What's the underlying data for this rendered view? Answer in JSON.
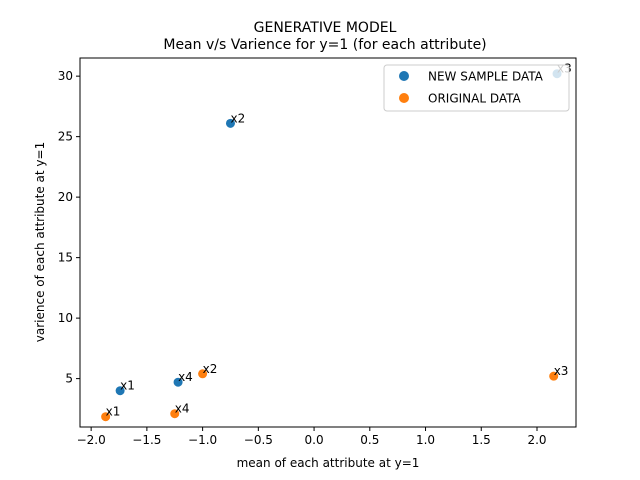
{
  "chart_data": {
    "type": "scatter",
    "title": "GENERATIVE MODEL",
    "subtitle": "Mean v/s Varience for y=1 (for each attribute)",
    "xlabel": "mean of each attribute at y=1",
    "ylabel": "varience of each attribute at y=1",
    "xlim": [
      -2.1,
      2.35
    ],
    "ylim": [
      1.0,
      31.5
    ],
    "xticks": [
      -2.0,
      -1.5,
      -1.0,
      -0.5,
      0.0,
      0.5,
      1.0,
      1.5,
      2.0
    ],
    "xtick_labels": [
      "−2.0",
      "−1.5",
      "−1.0",
      "−0.5",
      "0.0",
      "0.5",
      "1.0",
      "1.5",
      "2.0"
    ],
    "yticks": [
      5,
      10,
      15,
      20,
      25,
      30
    ],
    "ytick_labels": [
      "5",
      "10",
      "15",
      "20",
      "25",
      "30"
    ],
    "grid": false,
    "legend_position": "top-right",
    "series": [
      {
        "name": "NEW SAMPLE DATA",
        "color": "#1f77b4",
        "points": [
          {
            "label": "x1",
            "x": -1.74,
            "y": 4.0
          },
          {
            "label": "x2",
            "x": -0.75,
            "y": 26.1
          },
          {
            "label": "x3",
            "x": 2.18,
            "y": 30.2
          },
          {
            "label": "x4",
            "x": -1.22,
            "y": 4.7
          }
        ]
      },
      {
        "name": "ORIGINAL DATA",
        "color": "#ff7f0e",
        "points": [
          {
            "label": "x1",
            "x": -1.87,
            "y": 1.85
          },
          {
            "label": "x2",
            "x": -1.0,
            "y": 5.4
          },
          {
            "label": "x3",
            "x": 2.15,
            "y": 5.2
          },
          {
            "label": "x4",
            "x": -1.25,
            "y": 2.1
          }
        ]
      }
    ]
  }
}
